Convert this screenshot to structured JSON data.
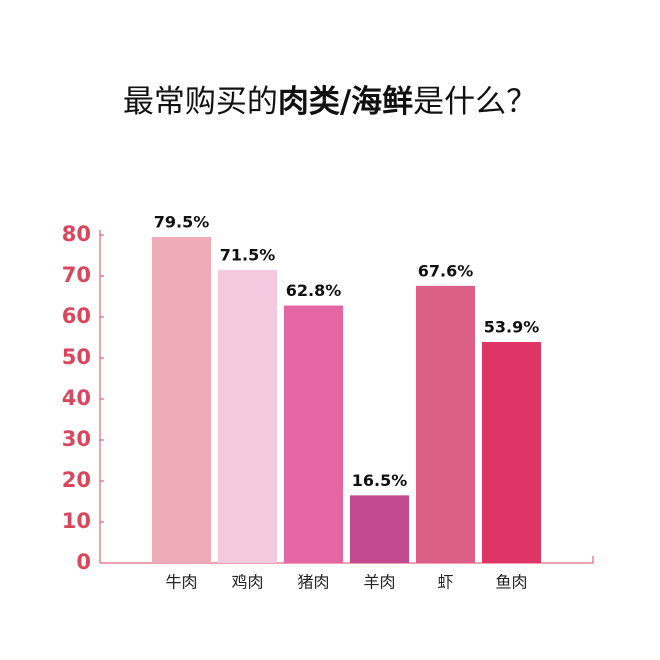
{
  "chart_data": {
    "type": "bar",
    "title_parts": [
      "最常购买的",
      "肉类/海鲜",
      "是什么？"
    ],
    "categories": [
      "牛肉",
      "鸡肉",
      "猪肉",
      "羊肉",
      "虾",
      "鱼肉"
    ],
    "values": [
      79.5,
      71.5,
      62.8,
      16.5,
      67.6,
      53.9
    ],
    "value_labels": [
      "79.5%",
      "71.5%",
      "62.8%",
      "16.5%",
      "67.6%",
      "53.9%"
    ],
    "colors": [
      "#f0abb9",
      "#f2c9df",
      "#e466a3",
      "#c2488f",
      "#dc5f88",
      "#df3566"
    ],
    "ylim": [
      0,
      80
    ],
    "yticks": [
      0,
      10,
      20,
      30,
      40,
      50,
      60,
      70,
      80
    ],
    "grid": false
  }
}
